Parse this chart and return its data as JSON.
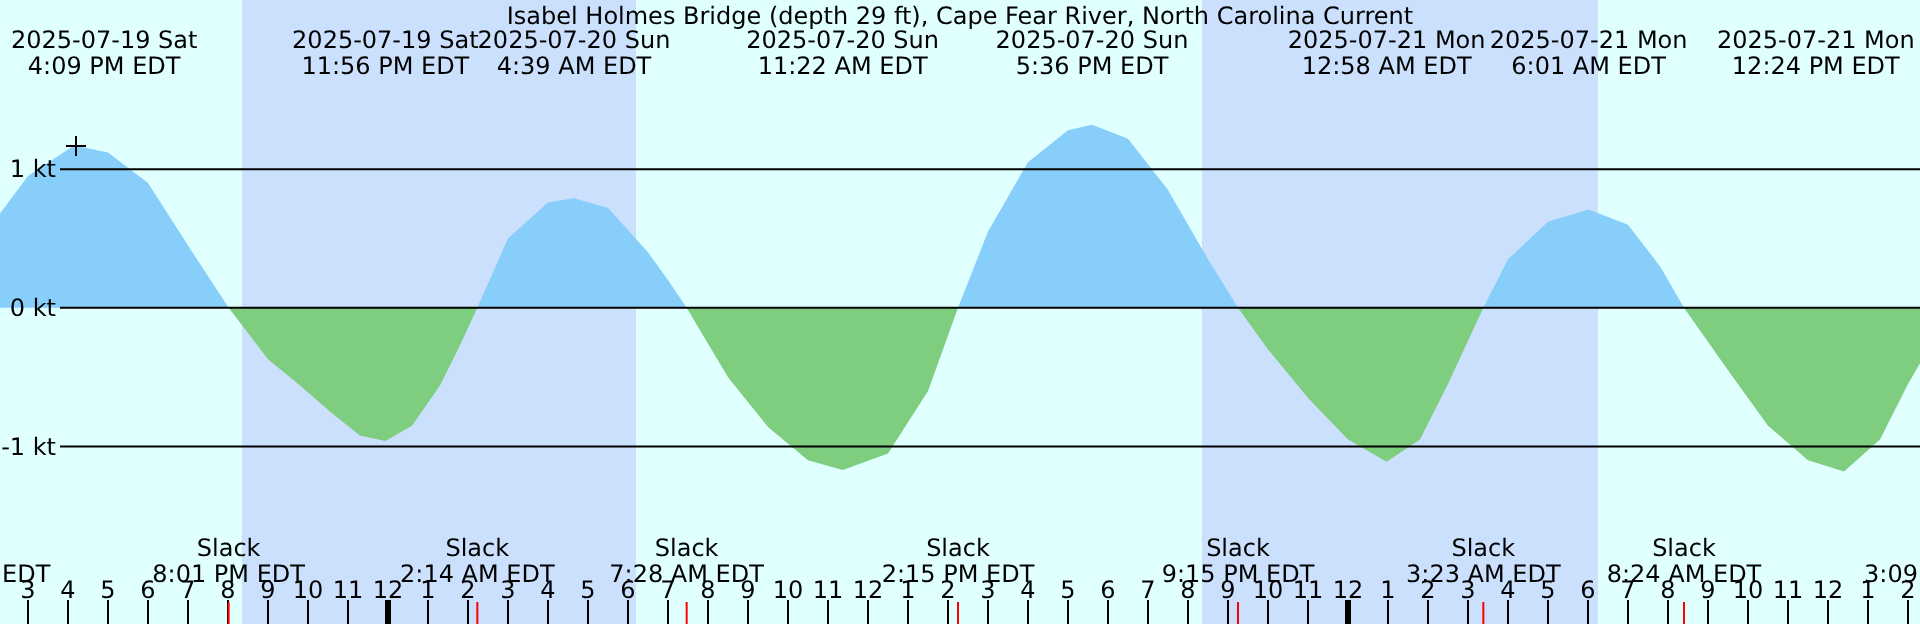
{
  "chart_data": {
    "type": "area",
    "title": "Isabel Holmes Bridge (depth 29 ft), Cape Fear River, North Carolina Current",
    "x": [
      "2025-07-19T14:18",
      "2025-07-19T15:00",
      "2025-07-19T16:09",
      "2025-07-19T17:00",
      "2025-07-19T18:00",
      "2025-07-19T19:00",
      "2025-07-19T20:01",
      "2025-07-19T21:00",
      "2025-07-19T21:48",
      "2025-07-19T22:36",
      "2025-07-19T23:18",
      "2025-07-19T23:56",
      "2025-07-20T00:36",
      "2025-07-20T01:18",
      "2025-07-20T01:48",
      "2025-07-20T02:14",
      "2025-07-20T03:00",
      "2025-07-20T04:00",
      "2025-07-20T04:39",
      "2025-07-20T05:30",
      "2025-07-20T06:30",
      "2025-07-20T07:00",
      "2025-07-20T07:28",
      "2025-07-20T08:30",
      "2025-07-20T09:30",
      "2025-07-20T10:30",
      "2025-07-20T11:22",
      "2025-07-20T12:30",
      "2025-07-20T13:30",
      "2025-07-20T14:15",
      "2025-07-20T15:00",
      "2025-07-20T16:00",
      "2025-07-20T17:00",
      "2025-07-20T17:36",
      "2025-07-20T18:30",
      "2025-07-20T19:30",
      "2025-07-20T20:30",
      "2025-07-20T21:15",
      "2025-07-20T22:00",
      "2025-07-20T23:00",
      "2025-07-21T00:00",
      "2025-07-21T00:58",
      "2025-07-21T01:48",
      "2025-07-21T02:30",
      "2025-07-21T03:23",
      "2025-07-21T04:00",
      "2025-07-21T05:00",
      "2025-07-21T06:01",
      "2025-07-21T07:00",
      "2025-07-21T07:48",
      "2025-07-21T08:24",
      "2025-07-21T09:30",
      "2025-07-21T10:30",
      "2025-07-21T11:30",
      "2025-07-21T12:24",
      "2025-07-21T13:18",
      "2025-07-21T14:00",
      "2025-07-21T14:18"
    ],
    "series": [
      {
        "color": "#87cefa",
        "values": [
          0.68,
          0.95,
          1.17,
          1.12,
          0.9,
          0.45,
          0,
          null,
          null,
          null,
          null,
          null,
          null,
          null,
          null,
          0,
          0.5,
          0.76,
          0.79,
          0.72,
          0.4,
          0.2,
          0,
          null,
          null,
          null,
          null,
          null,
          null,
          0,
          0.55,
          1.05,
          1.28,
          1.32,
          1.22,
          0.85,
          0.35,
          0,
          null,
          null,
          null,
          null,
          null,
          null,
          0,
          0.35,
          0.62,
          0.71,
          0.6,
          0.3,
          0,
          null,
          null,
          null,
          null,
          null,
          null,
          null
        ]
      },
      {
        "color": "#7fcd7f",
        "values": [
          null,
          null,
          null,
          null,
          null,
          null,
          0,
          -0.37,
          -0.56,
          -0.76,
          -0.92,
          -0.96,
          -0.85,
          -0.56,
          -0.27,
          0,
          null,
          null,
          null,
          null,
          null,
          null,
          0,
          -0.5,
          -0.86,
          -1.1,
          -1.17,
          -1.05,
          -0.6,
          0,
          null,
          null,
          null,
          null,
          null,
          null,
          null,
          0,
          -0.3,
          -0.65,
          -0.95,
          -1.11,
          -0.95,
          -0.55,
          0,
          null,
          null,
          null,
          null,
          null,
          0,
          -0.45,
          -0.85,
          -1.1,
          -1.18,
          -0.95,
          -0.55,
          -0.4
        ]
      }
    ],
    "xlim": [
      "2025-07-19T14:18",
      "2025-07-21T14:18"
    ],
    "xticks": [
      {
        "value": "2025-07-19T15:00",
        "label": "3"
      },
      {
        "value": "2025-07-19T16:00",
        "label": "4"
      },
      {
        "value": "2025-07-19T17:00",
        "label": "5"
      },
      {
        "value": "2025-07-19T18:00",
        "label": "6"
      },
      {
        "value": "2025-07-19T19:00",
        "label": "7"
      },
      {
        "value": "2025-07-19T20:00",
        "label": "8"
      },
      {
        "value": "2025-07-19T21:00",
        "label": "9"
      },
      {
        "value": "2025-07-19T22:00",
        "label": "10"
      },
      {
        "value": "2025-07-19T23:00",
        "label": "11"
      },
      {
        "value": "2025-07-20T00:00",
        "label": "12"
      },
      {
        "value": "2025-07-20T01:00",
        "label": "1"
      },
      {
        "value": "2025-07-20T02:00",
        "label": "2"
      },
      {
        "value": "2025-07-20T03:00",
        "label": "3"
      },
      {
        "value": "2025-07-20T04:00",
        "label": "4"
      },
      {
        "value": "2025-07-20T05:00",
        "label": "5"
      },
      {
        "value": "2025-07-20T06:00",
        "label": "6"
      },
      {
        "value": "2025-07-20T07:00",
        "label": "7"
      },
      {
        "value": "2025-07-20T08:00",
        "label": "8"
      },
      {
        "value": "2025-07-20T09:00",
        "label": "9"
      },
      {
        "value": "2025-07-20T10:00",
        "label": "10"
      },
      {
        "value": "2025-07-20T11:00",
        "label": "11"
      },
      {
        "value": "2025-07-20T12:00",
        "label": "12"
      },
      {
        "value": "2025-07-20T13:00",
        "label": "1"
      },
      {
        "value": "2025-07-20T14:00",
        "label": "2"
      },
      {
        "value": "2025-07-20T15:00",
        "label": "3"
      },
      {
        "value": "2025-07-20T16:00",
        "label": "4"
      },
      {
        "value": "2025-07-20T17:00",
        "label": "5"
      },
      {
        "value": "2025-07-20T18:00",
        "label": "6"
      },
      {
        "value": "2025-07-20T19:00",
        "label": "7"
      },
      {
        "value": "2025-07-20T20:00",
        "label": "8"
      },
      {
        "value": "2025-07-20T21:00",
        "label": "9"
      },
      {
        "value": "2025-07-20T22:00",
        "label": "10"
      },
      {
        "value": "2025-07-20T23:00",
        "label": "11"
      },
      {
        "value": "2025-07-21T00:00",
        "label": "12"
      },
      {
        "value": "2025-07-21T01:00",
        "label": "1"
      },
      {
        "value": "2025-07-21T02:00",
        "label": "2"
      },
      {
        "value": "2025-07-21T03:00",
        "label": "3"
      },
      {
        "value": "2025-07-21T04:00",
        "label": "4"
      },
      {
        "value": "2025-07-21T05:00",
        "label": "5"
      },
      {
        "value": "2025-07-21T06:00",
        "label": "6"
      },
      {
        "value": "2025-07-21T07:00",
        "label": "7"
      },
      {
        "value": "2025-07-21T08:00",
        "label": "8"
      },
      {
        "value": "2025-07-21T09:00",
        "label": "9"
      },
      {
        "value": "2025-07-21T10:00",
        "label": "10"
      },
      {
        "value": "2025-07-21T11:00",
        "label": "11"
      },
      {
        "value": "2025-07-21T12:00",
        "label": "12"
      },
      {
        "value": "2025-07-21T13:00",
        "label": "1"
      },
      {
        "value": "2025-07-21T14:00",
        "label": "2"
      }
    ],
    "ylim": [
      -2.28,
      2.22
    ],
    "yticks": [
      {
        "value": -1,
        "label": "-1 kt"
      },
      {
        "value": 0,
        "label": "0 kt"
      },
      {
        "value": 1,
        "label": "1 kt"
      }
    ],
    "grid": "y",
    "bands": [
      {
        "axis": "x",
        "from": "2025-07-19T20:21",
        "to": "2025-07-20T06:12",
        "color": "#cbe0fc"
      },
      {
        "axis": "x",
        "from": "2025-07-20T20:21",
        "to": "2025-07-21T06:15",
        "color": "#cbe0fc"
      }
    ],
    "annotations": [
      "2025-07-19 Sat\n4:09 PM EDT",
      "2025-07-19 Sat\n11:56 PM EDT",
      "2025-07-20 Sun\n4:39 AM EDT",
      "2025-07-20 Sun\n11:22 AM EDT",
      "2025-07-20 Sun\n5:36 PM EDT",
      "2025-07-21 Mon\n12:58 AM EDT",
      "2025-07-21 Mon\n6:01 AM EDT",
      "2025-07-21 Mon\n12:24 PM EDT",
      "Slack\n8:01 PM EDT",
      "Slack\n2:14 AM EDT",
      "Slack\n7:28 AM EDT",
      "Slack\n2:15 PM EDT",
      "Slack\n9:15 PM EDT",
      "Slack\n3:23 AM EDT",
      "Slack\n8:24 AM EDT",
      "EDT",
      "3:09"
    ]
  }
}
